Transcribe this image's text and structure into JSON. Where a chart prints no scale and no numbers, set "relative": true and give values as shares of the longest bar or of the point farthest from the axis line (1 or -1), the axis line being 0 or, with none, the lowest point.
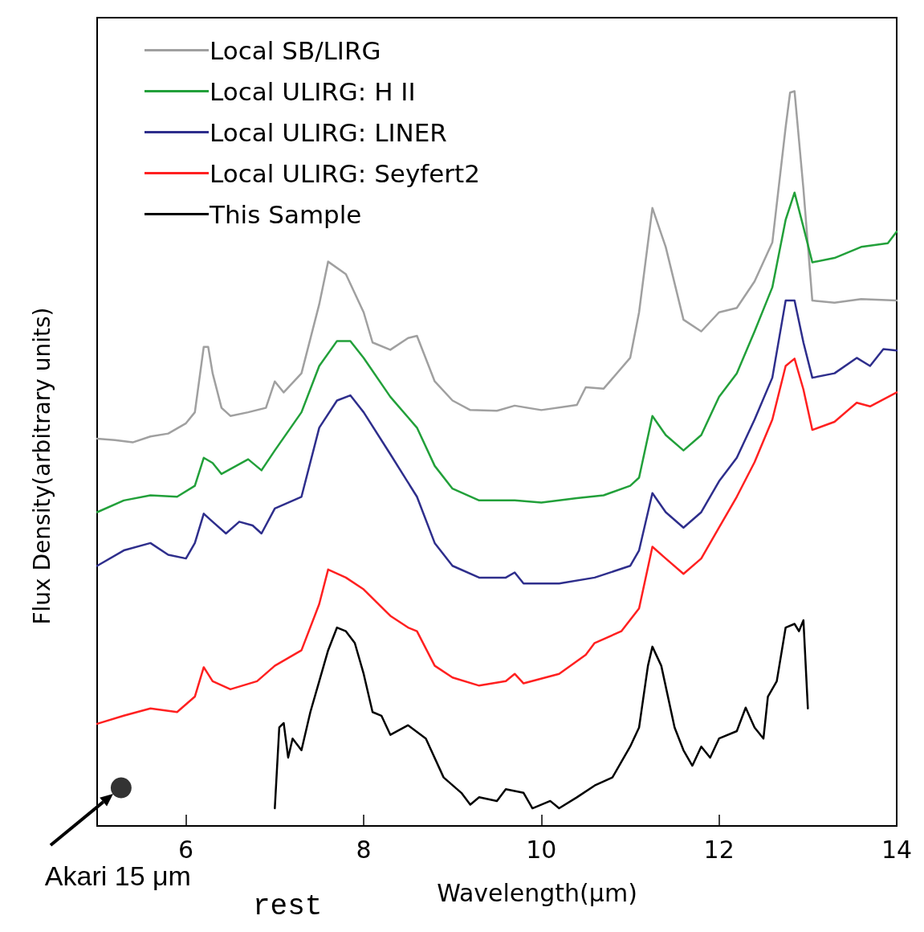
{
  "chart_data": {
    "type": "line",
    "relative": true,
    "xlabel": "Wavelength(μm)",
    "ylabel": "Flux Density(arbitrary units)",
    "xlim": [
      5,
      14
    ],
    "xticks": [
      6,
      8,
      10,
      12,
      14
    ],
    "grid": false,
    "legend": "top left",
    "marker": "none",
    "line_style": "solid",
    "annotations": [
      {
        "text": "Akari 15 μm",
        "x": 5.27,
        "y": 0.052
      },
      "rest"
    ],
    "series": [
      {
        "name": "Local SB/LIRG",
        "color": "#a0a0a0",
        "x": [
          5.0,
          5.2,
          5.4,
          5.6,
          5.8,
          6.0,
          6.1,
          6.2,
          6.25,
          6.3,
          6.4,
          6.5,
          6.7,
          6.9,
          7.0,
          7.1,
          7.3,
          7.5,
          7.6,
          7.8,
          8.0,
          8.1,
          8.3,
          8.5,
          8.6,
          8.8,
          9.0,
          9.2,
          9.5,
          9.7,
          10.0,
          10.4,
          10.5,
          10.7,
          11.0,
          11.1,
          11.25,
          11.4,
          11.6,
          11.8,
          12.0,
          12.2,
          12.4,
          12.6,
          12.75,
          12.8,
          12.85,
          12.95,
          13.05,
          13.3,
          13.6,
          14.0
        ],
        "values": [
          0.527,
          0.525,
          0.522,
          0.53,
          0.534,
          0.548,
          0.563,
          0.652,
          0.652,
          0.616,
          0.569,
          0.558,
          0.563,
          0.569,
          0.605,
          0.59,
          0.616,
          0.71,
          0.768,
          0.751,
          0.699,
          0.658,
          0.648,
          0.664,
          0.667,
          0.605,
          0.579,
          0.566,
          0.565,
          0.572,
          0.566,
          0.573,
          0.597,
          0.595,
          0.637,
          0.699,
          0.841,
          0.788,
          0.689,
          0.673,
          0.699,
          0.705,
          0.741,
          0.794,
          0.951,
          0.998,
          1.0,
          0.867,
          0.715,
          0.712,
          0.717,
          0.715
        ]
      },
      {
        "name": "Local ULIRG: H II",
        "color": "#22a03a",
        "x": [
          5.0,
          5.3,
          5.6,
          5.9,
          6.1,
          6.2,
          6.3,
          6.4,
          6.7,
          6.85,
          7.0,
          7.3,
          7.5,
          7.7,
          7.85,
          8.0,
          8.3,
          8.6,
          8.8,
          9.0,
          9.3,
          9.7,
          10.0,
          10.4,
          10.7,
          11.0,
          11.1,
          11.25,
          11.4,
          11.6,
          11.8,
          12.0,
          12.2,
          12.4,
          12.6,
          12.75,
          12.85,
          12.95,
          13.05,
          13.3,
          13.6,
          13.9,
          14.0
        ],
        "values": [
          0.427,
          0.443,
          0.45,
          0.448,
          0.463,
          0.501,
          0.494,
          0.479,
          0.499,
          0.484,
          0.511,
          0.563,
          0.626,
          0.66,
          0.66,
          0.637,
          0.584,
          0.542,
          0.49,
          0.459,
          0.443,
          0.443,
          0.44,
          0.446,
          0.45,
          0.463,
          0.474,
          0.558,
          0.532,
          0.511,
          0.532,
          0.584,
          0.616,
          0.673,
          0.733,
          0.825,
          0.862,
          0.815,
          0.767,
          0.773,
          0.788,
          0.793,
          0.809
        ]
      },
      {
        "name": "Local ULIRG: LINER",
        "color": "#2e2e8c",
        "x": [
          5.0,
          5.3,
          5.6,
          5.8,
          6.0,
          6.1,
          6.2,
          6.3,
          6.45,
          6.6,
          6.75,
          6.85,
          7.0,
          7.3,
          7.5,
          7.7,
          7.85,
          8.0,
          8.3,
          8.6,
          8.8,
          9.0,
          9.3,
          9.6,
          9.7,
          9.8,
          10.2,
          10.6,
          11.0,
          11.1,
          11.25,
          11.4,
          11.6,
          11.8,
          12.0,
          12.2,
          12.4,
          12.6,
          12.75,
          12.85,
          12.95,
          13.05,
          13.3,
          13.55,
          13.7,
          13.85,
          14.0
        ],
        "values": [
          0.354,
          0.375,
          0.385,
          0.369,
          0.364,
          0.385,
          0.425,
          0.414,
          0.398,
          0.414,
          0.409,
          0.398,
          0.432,
          0.448,
          0.542,
          0.579,
          0.586,
          0.563,
          0.506,
          0.448,
          0.385,
          0.354,
          0.338,
          0.338,
          0.345,
          0.33,
          0.33,
          0.338,
          0.354,
          0.375,
          0.453,
          0.427,
          0.406,
          0.427,
          0.469,
          0.501,
          0.553,
          0.61,
          0.715,
          0.715,
          0.658,
          0.61,
          0.616,
          0.637,
          0.626,
          0.649,
          0.647
        ]
      },
      {
        "name": "Local ULIRG: Seyfert2",
        "color": "#ff2020",
        "x": [
          5.0,
          5.3,
          5.6,
          5.9,
          6.1,
          6.2,
          6.3,
          6.5,
          6.8,
          7.0,
          7.3,
          7.5,
          7.6,
          7.8,
          8.0,
          8.3,
          8.5,
          8.6,
          8.8,
          9.0,
          9.3,
          9.6,
          9.7,
          9.8,
          10.2,
          10.5,
          10.6,
          10.9,
          11.1,
          11.25,
          11.4,
          11.6,
          11.8,
          12.0,
          12.2,
          12.4,
          12.6,
          12.75,
          12.85,
          12.95,
          13.05,
          13.3,
          13.55,
          13.7,
          14.0
        ],
        "values": [
          0.139,
          0.15,
          0.16,
          0.155,
          0.176,
          0.216,
          0.197,
          0.186,
          0.197,
          0.218,
          0.239,
          0.302,
          0.349,
          0.338,
          0.322,
          0.286,
          0.27,
          0.265,
          0.218,
          0.202,
          0.191,
          0.197,
          0.207,
          0.194,
          0.207,
          0.233,
          0.249,
          0.265,
          0.296,
          0.38,
          0.364,
          0.343,
          0.364,
          0.406,
          0.448,
          0.495,
          0.553,
          0.626,
          0.636,
          0.594,
          0.539,
          0.55,
          0.576,
          0.571,
          0.59
        ]
      },
      {
        "name": "This Sample",
        "color": "#000000",
        "x": [
          7.0,
          7.05,
          7.1,
          7.15,
          7.2,
          7.3,
          7.4,
          7.5,
          7.6,
          7.7,
          7.8,
          7.9,
          8.0,
          8.1,
          8.2,
          8.3,
          8.5,
          8.7,
          8.9,
          9.1,
          9.2,
          9.3,
          9.5,
          9.6,
          9.8,
          9.9,
          10.1,
          10.2,
          10.4,
          10.6,
          10.8,
          10.9,
          11.0,
          11.1,
          11.2,
          11.25,
          11.35,
          11.5,
          11.6,
          11.7,
          11.8,
          11.9,
          12.0,
          12.2,
          12.3,
          12.4,
          12.5,
          12.55,
          12.65,
          12.75,
          12.85,
          12.9,
          12.95,
          13.0
        ],
        "values": [
          0.024,
          0.134,
          0.14,
          0.093,
          0.119,
          0.103,
          0.155,
          0.197,
          0.239,
          0.27,
          0.265,
          0.249,
          0.207,
          0.155,
          0.15,
          0.124,
          0.137,
          0.119,
          0.066,
          0.045,
          0.029,
          0.039,
          0.034,
          0.05,
          0.045,
          0.024,
          0.034,
          0.024,
          0.039,
          0.055,
          0.066,
          0.087,
          0.108,
          0.134,
          0.218,
          0.244,
          0.218,
          0.134,
          0.103,
          0.082,
          0.108,
          0.093,
          0.119,
          0.129,
          0.161,
          0.134,
          0.119,
          0.176,
          0.197,
          0.27,
          0.275,
          0.265,
          0.28,
          0.16
        ]
      },
      {
        "type": "scatter",
        "marker": "circle",
        "color": "#000000",
        "x": [
          5.27
        ],
        "values": [
          0.052
        ]
      }
    ]
  }
}
